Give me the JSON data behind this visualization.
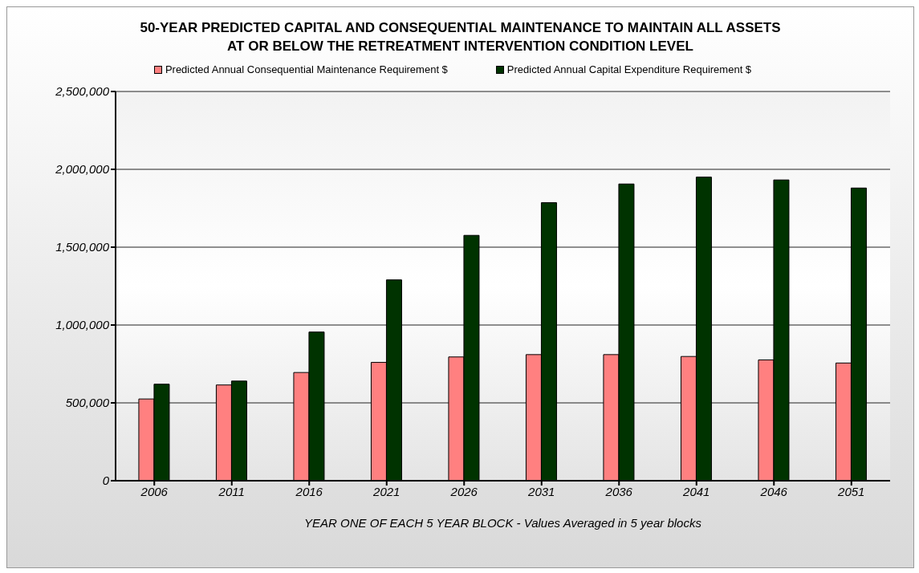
{
  "chart_data": {
    "type": "bar",
    "title": "50-YEAR PREDICTED CAPITAL AND CONSEQUENTIAL MAINTENANCE TO MAINTAIN ALL ASSETS\nAT OR BELOW THE RETREATMENT INTERVENTION CONDITION LEVEL",
    "xlabel": "YEAR ONE OF EACH 5 YEAR BLOCK - Values Averaged in 5 year blocks",
    "categories": [
      "2006",
      "2011",
      "2016",
      "2021",
      "2026",
      "2031",
      "2036",
      "2041",
      "2046",
      "2051"
    ],
    "series": [
      {
        "name": "Predicted Annual Consequential Maintenance Requirement $",
        "color": "#ff8080",
        "values": [
          525000,
          615000,
          695000,
          760000,
          795000,
          810000,
          810000,
          798000,
          776000,
          756000
        ]
      },
      {
        "name": "Predicted Annual Capital Expenditure Requirement $",
        "color": "#003300",
        "values": [
          620000,
          640000,
          955000,
          1290000,
          1576000,
          1786000,
          1906000,
          1950000,
          1932000,
          1880000
        ]
      }
    ],
    "ylim": [
      0,
      2500000
    ],
    "yticks": [
      {
        "value": 0,
        "label": "0"
      },
      {
        "value": 500000,
        "label": "500,000"
      },
      {
        "value": 1000000,
        "label": "1,000,000"
      },
      {
        "value": 1500000,
        "label": "1,500,000"
      },
      {
        "value": 2000000,
        "label": "2,000,000"
      },
      {
        "value": 2500000,
        "label": "2,500,000"
      }
    ],
    "grid": "y",
    "legend": "top"
  }
}
